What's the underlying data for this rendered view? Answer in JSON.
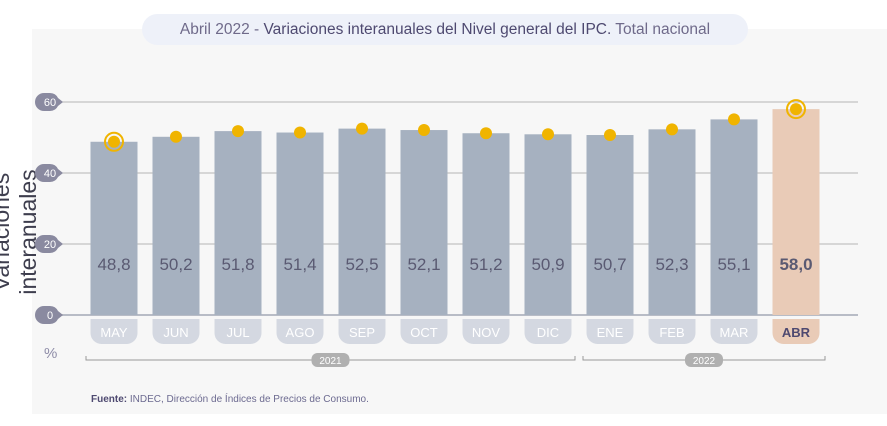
{
  "title": {
    "prefix": "Abril 2022 - ",
    "main": "Variaciones interanuales del Nivel general del IPC.",
    "suffix": " Total nacional"
  },
  "chart_data": {
    "type": "bar",
    "ylabel": "Variaciones interanuales",
    "unit": "%",
    "ylim": [
      0,
      60
    ],
    "yticks": [
      0,
      20,
      40,
      60
    ],
    "grid": true,
    "categories": [
      "MAY",
      "JUN",
      "JUL",
      "AGO",
      "SEP",
      "OCT",
      "NOV",
      "DIC",
      "ENE",
      "FEB",
      "MAR",
      "ABR"
    ],
    "values": [
      48.8,
      50.2,
      51.8,
      51.4,
      52.5,
      52.1,
      51.2,
      50.9,
      50.7,
      52.3,
      55.1,
      58.0
    ],
    "value_labels": [
      "48,8",
      "50,2",
      "51,8",
      "51,4",
      "52,5",
      "52,1",
      "51,2",
      "50,9",
      "50,7",
      "52,3",
      "55,1",
      "58,0"
    ],
    "highlighted": "ABR",
    "year_groups": [
      {
        "label": "2021",
        "from": "MAY",
        "to": "DIC"
      },
      {
        "label": "2022",
        "from": "ENE",
        "to": "ABR"
      }
    ],
    "colors": {
      "bar": "#a6b1c0",
      "highlight_bar": "#e9cbb7",
      "dot": "#f0b400",
      "axis_badge": "#8a8aa0",
      "month_badge": "#d4d8e1",
      "highlight_badge": "#e9cbb7",
      "year_badge": "#b0b0b0"
    }
  },
  "source": {
    "label": "Fuente:",
    "text": " INDEC, Dirección de Índices de Precios de Consumo."
  }
}
